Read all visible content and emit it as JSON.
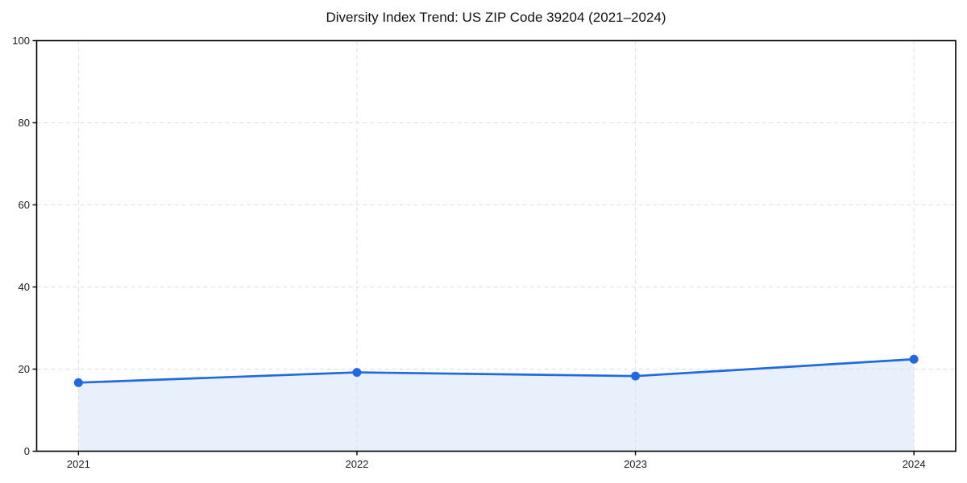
{
  "page": {
    "background": "#FFFFFF"
  },
  "chart_data": {
    "type": "line",
    "title": "Diversity Index Trend: US ZIP Code 39204 (2021–2024)",
    "x": [
      "2021",
      "2022",
      "2023",
      "2024"
    ],
    "series": [
      {
        "name": "Diversity Index",
        "values": [
          16.7,
          19.2,
          18.3,
          22.4
        ]
      }
    ],
    "xlabel": "",
    "ylabel": "",
    "ylim": [
      0,
      100
    ],
    "yticks": [
      0,
      20,
      40,
      60,
      80,
      100
    ],
    "grid": true,
    "grid_style": "dashed",
    "legend_position": "none",
    "marker": "circle",
    "area_fill": true,
    "fill_opacity": 0.1,
    "colors": {
      "line": "#2169E0",
      "fill": "#2169E0",
      "grid": "#DEDEDE",
      "axis": "#000000",
      "tick_text": "#1A1A1A",
      "title_text": "#111111"
    }
  }
}
